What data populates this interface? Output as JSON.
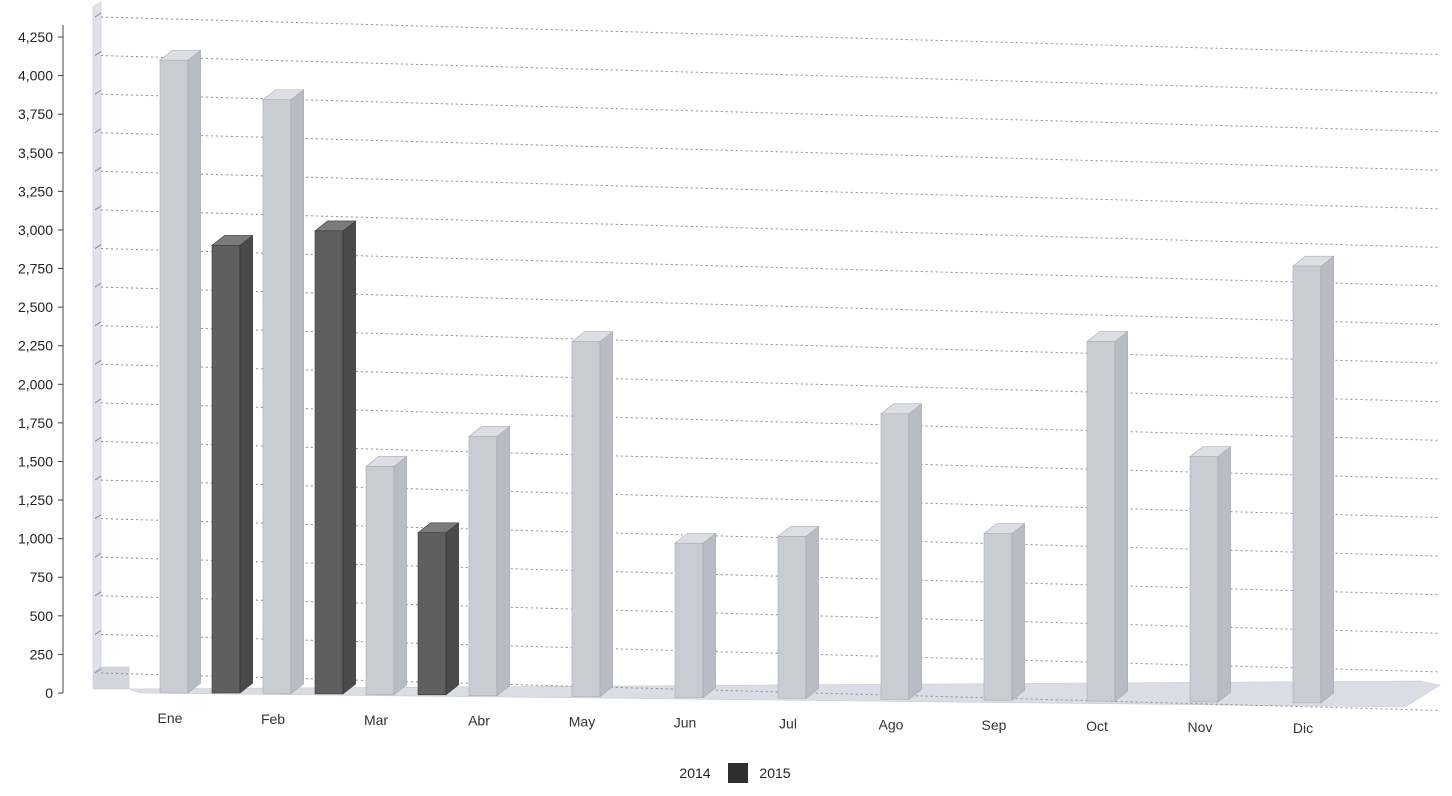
{
  "chart_data": {
    "type": "bar",
    "style": "3d-clustered",
    "categories": [
      "Ene",
      "Feb",
      "Mar",
      "Abr",
      "May",
      "Jun",
      "Jul",
      "Ago",
      "Sep",
      "Oct",
      "Nov",
      "Dic"
    ],
    "series": [
      {
        "name": "2014",
        "color": "#c9ccd3",
        "values": [
          4100,
          3850,
          1480,
          1680,
          2300,
          1000,
          1050,
          1850,
          1080,
          2330,
          1590,
          2830
        ]
      },
      {
        "name": "2015",
        "color": "#6a6a6a",
        "values": [
          2900,
          3000,
          1050,
          null,
          null,
          null,
          null,
          null,
          null,
          null,
          null,
          null
        ]
      }
    ],
    "y_ticks": [
      "0",
      "250",
      "500",
      "750",
      "1,000",
      "1,250",
      "1,500",
      "1,750",
      "2,000",
      "2,250",
      "2,500",
      "2,750",
      "3,000",
      "3,250",
      "3,500",
      "3,750",
      "4,000",
      "4,250"
    ],
    "ylim": [
      0,
      4250
    ],
    "grid": true,
    "legend": "bottom-center",
    "title": "",
    "xlabel": "",
    "ylabel": ""
  }
}
